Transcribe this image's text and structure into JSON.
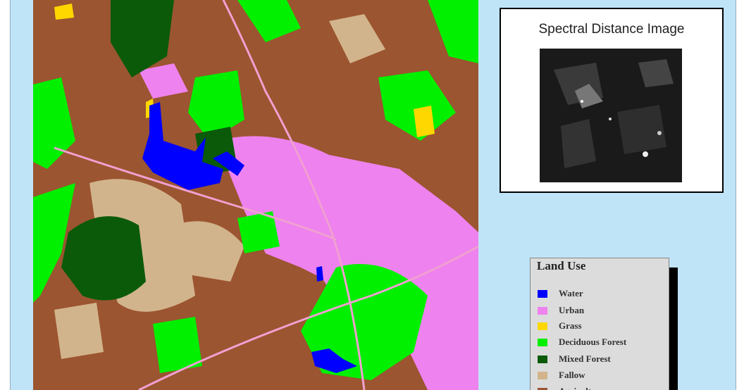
{
  "spectral_panel": {
    "title": "Spectral Distance Image"
  },
  "legend": {
    "title": "Land Use",
    "items": [
      {
        "label": "Water",
        "color": "#0000ff"
      },
      {
        "label": "Urban",
        "color": "#ee82ee"
      },
      {
        "label": "Grass",
        "color": "#ffd700"
      },
      {
        "label": "Deciduous Forest",
        "color": "#00f000"
      },
      {
        "label": "Mixed Forest",
        "color": "#0a5a0a"
      },
      {
        "label": "Fallow",
        "color": "#d2b48c"
      },
      {
        "label": "Agriculture",
        "color": "#9b5530"
      }
    ]
  }
}
